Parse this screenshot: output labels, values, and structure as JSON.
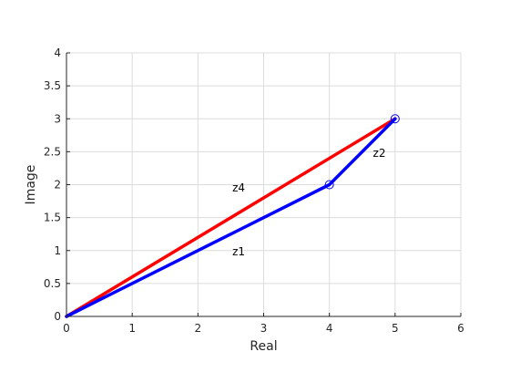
{
  "chart_data": {
    "type": "line",
    "xlabel": "Real",
    "ylabel": "Image",
    "xlim": [
      0,
      6
    ],
    "ylim": [
      0,
      4
    ],
    "xticks": [
      "0",
      "1",
      "2",
      "3",
      "4",
      "5",
      "6"
    ],
    "yticks": [
      "0",
      "0.5",
      "1",
      "1.5",
      "2",
      "2.5",
      "3",
      "3.5",
      "4"
    ],
    "grid": true,
    "series": [
      {
        "color": "#ff0000",
        "x": [
          0,
          5
        ],
        "y": [
          0,
          3
        ]
      },
      {
        "color": "#0000ff",
        "x": [
          0,
          4,
          5
        ],
        "y": [
          0,
          2,
          3
        ],
        "markers": [
          {
            "x": 4,
            "y": 2
          },
          {
            "x": 5,
            "y": 3
          }
        ]
      }
    ],
    "annotations": [
      {
        "text": "z4",
        "x": 2.62,
        "y": 1.95
      },
      {
        "text": "z1",
        "x": 2.62,
        "y": 0.98
      },
      {
        "text": "z2",
        "x": 4.76,
        "y": 2.48
      }
    ]
  }
}
